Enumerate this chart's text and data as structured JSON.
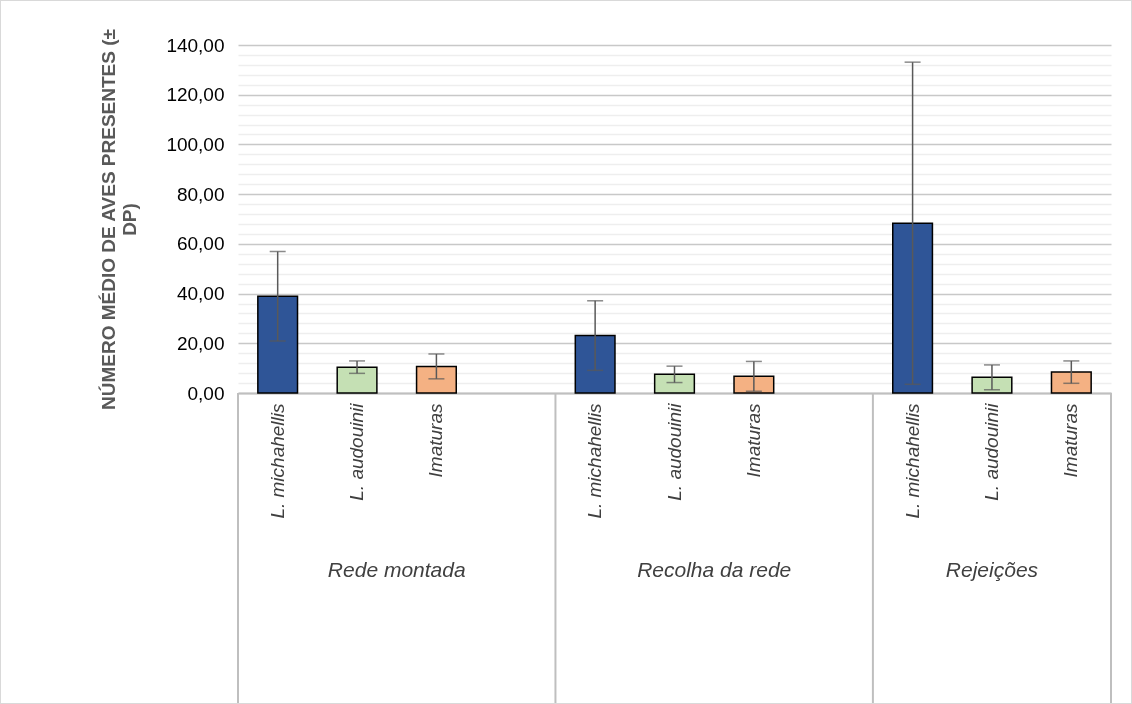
{
  "chart_data": {
    "type": "bar",
    "ylabel": "NÚMERO MÉDIO DE AVES PRESENTES (± DP)",
    "categories": [
      "L. michahellis",
      "L. audouinii",
      "Imaturas",
      null,
      "L. michahellis",
      "L. audouinii",
      "Imaturas",
      null,
      "L. michahellis",
      "L. audouinii",
      "Imaturas"
    ],
    "values": [
      38.9,
      10.4,
      10.7,
      null,
      23.1,
      7.5,
      6.7,
      null,
      68.3,
      6.3,
      8.4
    ],
    "errors": [
      18,
      2.5,
      5,
      null,
      14,
      3.3,
      6,
      null,
      64.8,
      5,
      4.5
    ],
    "colors": [
      "#2f5597",
      "#c5e0b4",
      "#f4b183",
      null,
      "#2f5597",
      "#c5e0b4",
      "#f4b183",
      null,
      "#2f5597",
      "#c5e0b4",
      "#f4b183"
    ],
    "annotations": [
      "Rede montada",
      "Recolha da rede",
      "Rejeições"
    ],
    "ylim": [
      0,
      140
    ],
    "yticks": [
      {
        "value": 0,
        "label": "0,00"
      },
      {
        "value": 4,
        "label": null
      },
      {
        "value": 8,
        "label": null
      },
      {
        "value": 12,
        "label": null
      },
      {
        "value": 16,
        "label": null
      },
      {
        "value": 20,
        "label": "20,00"
      },
      {
        "value": 24,
        "label": null
      },
      {
        "value": 28,
        "label": null
      },
      {
        "value": 32,
        "label": null
      },
      {
        "value": 36,
        "label": null
      },
      {
        "value": 40,
        "label": "40,00"
      },
      {
        "value": 44,
        "label": null
      },
      {
        "value": 48,
        "label": null
      },
      {
        "value": 52,
        "label": null
      },
      {
        "value": 56,
        "label": null
      },
      {
        "value": 60,
        "label": "60,00"
      },
      {
        "value": 64,
        "label": null
      },
      {
        "value": 68,
        "label": null
      },
      {
        "value": 72,
        "label": null
      },
      {
        "value": 76,
        "label": null
      },
      {
        "value": 80,
        "label": "80,00"
      },
      {
        "value": 84,
        "label": null
      },
      {
        "value": 88,
        "label": null
      },
      {
        "value": 92,
        "label": null
      },
      {
        "value": 96,
        "label": null
      },
      {
        "value": 100,
        "label": "100,00"
      },
      {
        "value": 104,
        "label": null
      },
      {
        "value": 108,
        "label": null
      },
      {
        "value": 112,
        "label": null
      },
      {
        "value": 116,
        "label": null
      },
      {
        "value": 120,
        "label": "120,00"
      },
      {
        "value": 124,
        "label": null
      },
      {
        "value": 128,
        "label": null
      },
      {
        "value": 132,
        "label": null
      },
      {
        "value": 136,
        "label": null
      },
      {
        "value": 140,
        "label": "140,00"
      }
    ],
    "grid": true
  }
}
